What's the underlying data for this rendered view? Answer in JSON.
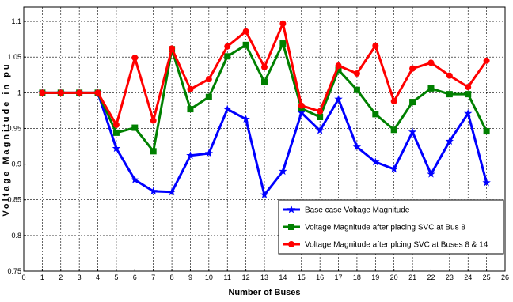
{
  "chart_data": {
    "type": "line",
    "title": "",
    "xlabel": "Number of Buses",
    "ylabel": "Voltage Magnitude in pu",
    "xlim": [
      0,
      26
    ],
    "ylim": [
      0.75,
      1.12
    ],
    "xticks": [
      0,
      1,
      2,
      3,
      4,
      5,
      6,
      7,
      8,
      9,
      10,
      11,
      12,
      13,
      14,
      15,
      16,
      17,
      18,
      19,
      20,
      21,
      22,
      23,
      24,
      25,
      26
    ],
    "yticks": [
      0.75,
      0.8,
      0.85,
      0.9,
      0.95,
      1,
      1.05,
      1.1
    ],
    "ytick_labels": [
      "0.75",
      "0.8",
      "0.85",
      "0.9",
      "0.95",
      "1",
      "1.05",
      "1.1"
    ],
    "grid": true,
    "legend_position": "bottom-right",
    "x": [
      1,
      2,
      3,
      4,
      5,
      6,
      7,
      8,
      9,
      10,
      11,
      12,
      13,
      14,
      15,
      16,
      17,
      18,
      19,
      20,
      21,
      22,
      23,
      24,
      25
    ],
    "series": [
      {
        "name": "Base case Voltage Magnitude",
        "color": "#0000ff",
        "marker": "star",
        "values": [
          1.0,
          1.0,
          1.0,
          1.0,
          0.922,
          0.878,
          0.862,
          0.861,
          0.912,
          0.915,
          0.977,
          0.963,
          0.857,
          0.89,
          0.972,
          0.947,
          0.991,
          0.924,
          0.903,
          0.893,
          0.945,
          0.886,
          0.932,
          0.971,
          0.874
        ]
      },
      {
        "name": "Voltage Magnitude after placing SVC at Bus 8",
        "color": "#008000",
        "marker": "square",
        "values": [
          1.0,
          1.0,
          1.0,
          1.0,
          0.944,
          0.951,
          0.918,
          1.061,
          0.977,
          0.994,
          1.051,
          1.067,
          1.015,
          1.069,
          0.978,
          0.966,
          1.032,
          1.004,
          0.97,
          0.948,
          0.987,
          1.006,
          0.998,
          0.998,
          0.946
        ]
      },
      {
        "name": "Voltage Magnitude after plcing SVC at Buses  8 & 14",
        "color": "#ff0000",
        "marker": "circle",
        "values": [
          1.0,
          1.0,
          1.0,
          1.0,
          0.955,
          1.049,
          0.961,
          1.062,
          1.005,
          1.019,
          1.065,
          1.086,
          1.036,
          1.097,
          0.982,
          0.974,
          1.038,
          1.027,
          1.066,
          0.988,
          1.034,
          1.042,
          1.024,
          1.008,
          1.045
        ]
      }
    ]
  }
}
